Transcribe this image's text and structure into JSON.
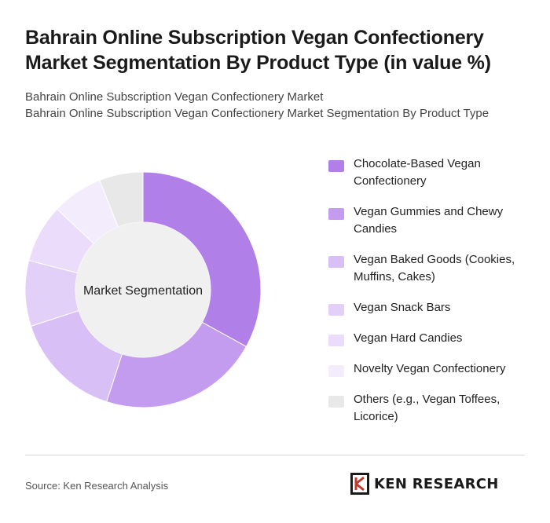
{
  "header": {
    "title_line1": "Bahrain Online Subscription Vegan Confectionery",
    "title_line2": "Market Segmentation By Product Type (in value %)",
    "subtitle_line1": "Bahrain Online Subscription Vegan Confectionery Market",
    "subtitle_line2": "Bahrain Online Subscription Vegan Confectionery Market Segmentation By Product Type"
  },
  "chart_data": {
    "type": "pie",
    "center_label": "Market Segmentation",
    "legend_position": "right",
    "slices": [
      {
        "label": "Chocolate-Based Vegan Confectionery",
        "value": 33,
        "color": "#b07fe8"
      },
      {
        "label": "Vegan Gummies and Chewy Candies",
        "value": 22,
        "color": "#c39cf0"
      },
      {
        "label": "Vegan Baked Goods (Cookies, Muffins, Cakes)",
        "value": 15,
        "color": "#d8bff6"
      },
      {
        "label": "Vegan Snack Bars",
        "value": 9,
        "color": "#e3d0f8"
      },
      {
        "label": "Vegan Hard Candies",
        "value": 8,
        "color": "#eadcfa"
      },
      {
        "label": "Novelty Vegan Confectionery",
        "value": 7,
        "color": "#f3ecfc"
      },
      {
        "label": "Others (e.g., Vegan Toffees, Licorice)",
        "value": 6,
        "color": "#e8e8e8"
      }
    ]
  },
  "footer": {
    "source": "Source: Ken Research Analysis",
    "logo_text": "KEN RESEARCH"
  }
}
